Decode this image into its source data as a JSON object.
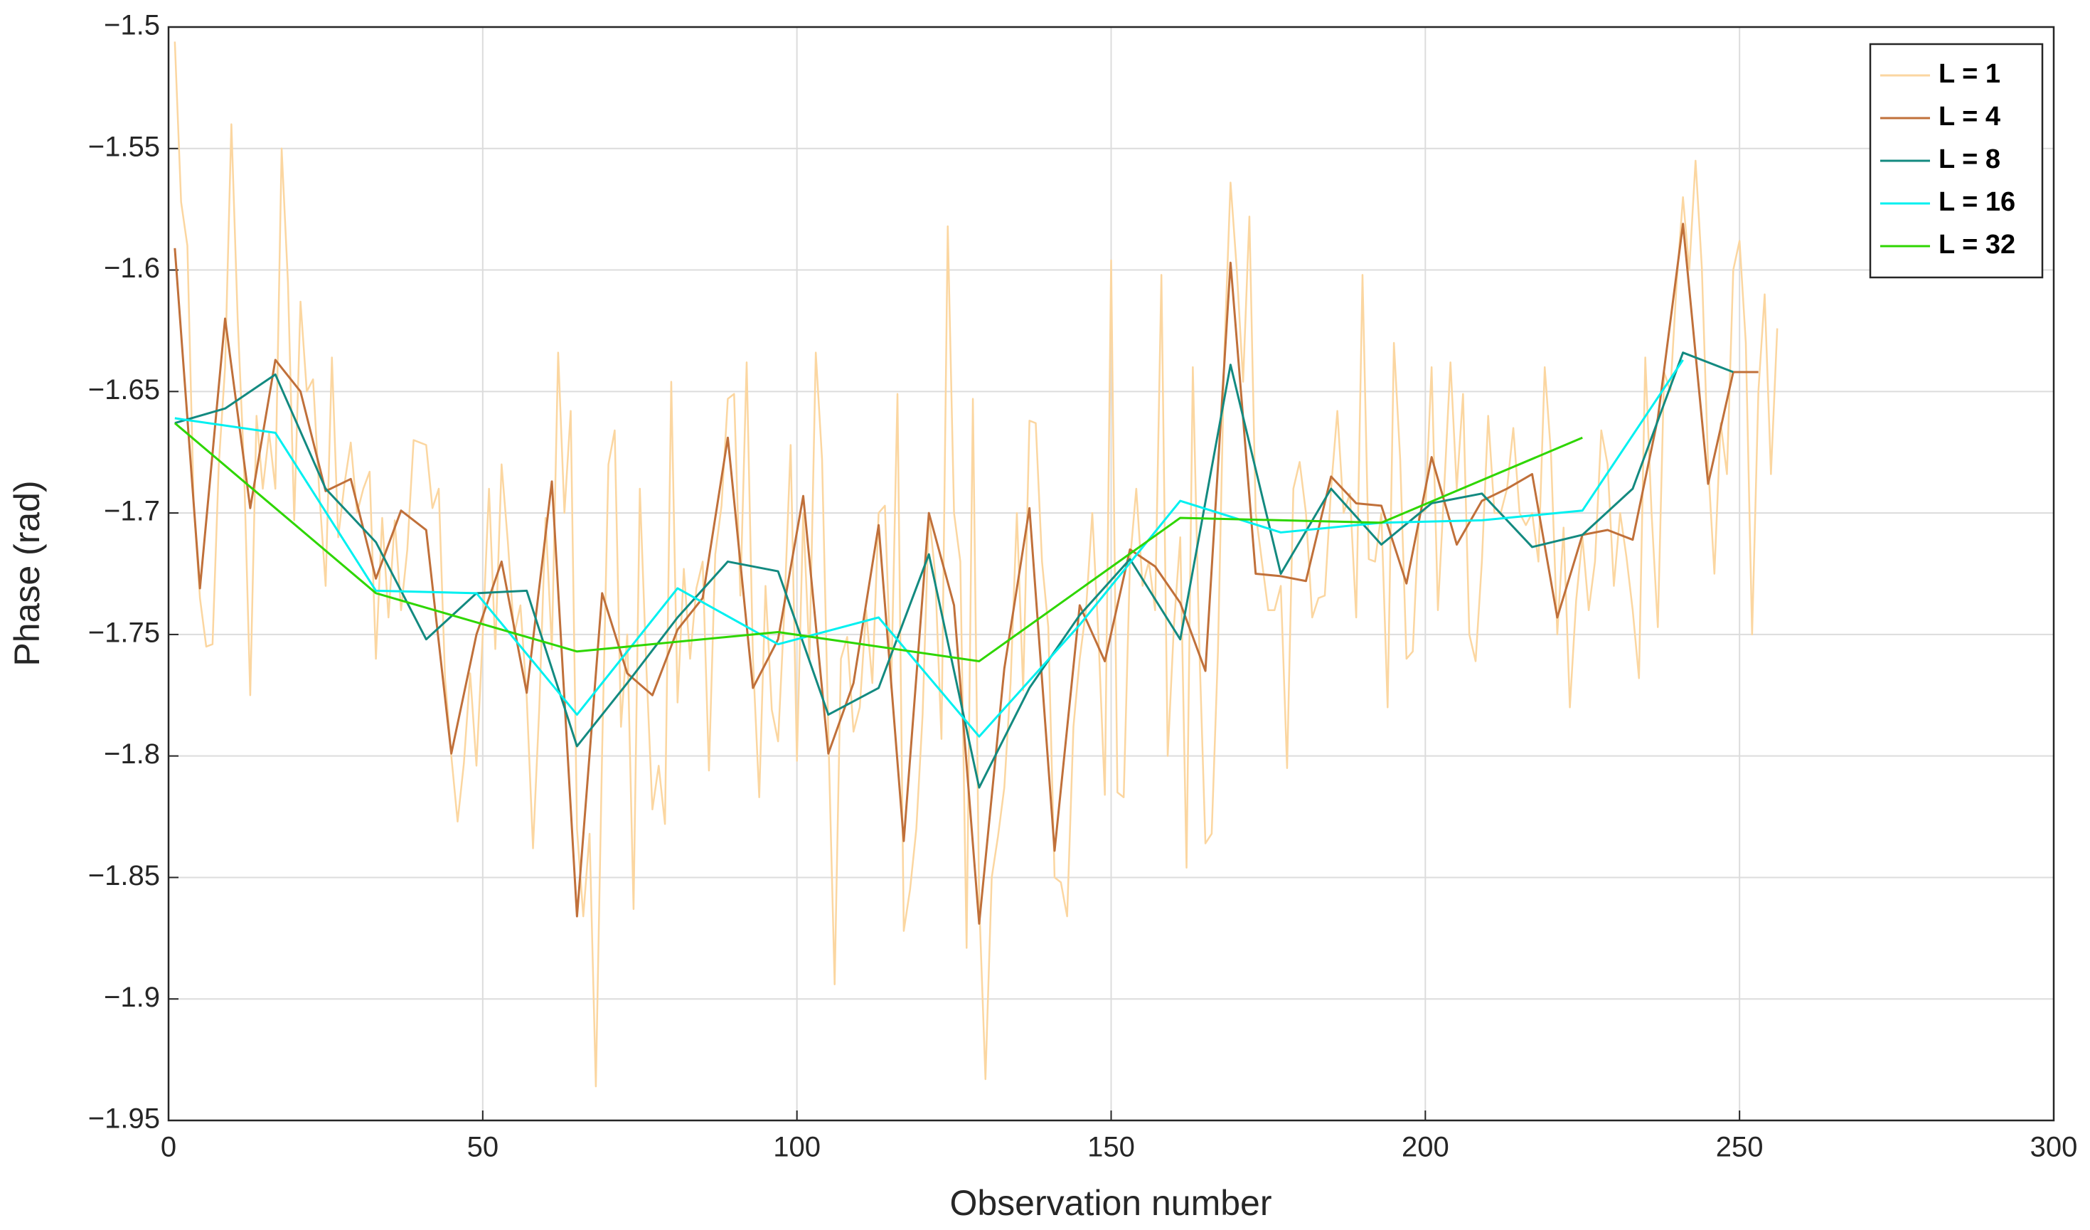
{
  "chart_data": {
    "type": "line",
    "xlabel": "Observation number",
    "ylabel": "Phase (rad)",
    "xlim": [
      0,
      300
    ],
    "xticks": [
      0,
      50,
      100,
      150,
      200,
      250,
      300
    ],
    "ylim": [
      -1.95,
      -1.5
    ],
    "yticks": [
      {
        "value": -1.95,
        "label": "−1.95"
      },
      {
        "value": -1.9,
        "label": "−1.9"
      },
      {
        "value": -1.85,
        "label": "−1.85"
      },
      {
        "value": -1.8,
        "label": "−1.8"
      },
      {
        "value": -1.75,
        "label": "−1.75"
      },
      {
        "value": -1.7,
        "label": "−1.7"
      },
      {
        "value": -1.65,
        "label": "−1.65"
      },
      {
        "value": -1.6,
        "label": "−1.6"
      },
      {
        "value": -1.55,
        "label": "−1.55"
      },
      {
        "value": -1.5,
        "label": "−1.5"
      }
    ],
    "grid": true,
    "legend": "northeast",
    "series": [
      {
        "name": "L = 1",
        "color": "#fbd6a0",
        "x": [
          1,
          2,
          3,
          4,
          5,
          6,
          7,
          8,
          9,
          10,
          11,
          12,
          13,
          14,
          15,
          16,
          17,
          18,
          19,
          20,
          21,
          22,
          23,
          24,
          25,
          26,
          27,
          28,
          29,
          30,
          31,
          32,
          33,
          34,
          35,
          36,
          37,
          38,
          39,
          40,
          41,
          42,
          43,
          44,
          45,
          46,
          47,
          48,
          49,
          50,
          51,
          52,
          53,
          54,
          55,
          56,
          57,
          58,
          59,
          60,
          61,
          62,
          63,
          64,
          65,
          66,
          67,
          68,
          69,
          70,
          71,
          72,
          73,
          74,
          75,
          76,
          77,
          78,
          79,
          80,
          81,
          82,
          83,
          84,
          85,
          86,
          87,
          88,
          89,
          90,
          91,
          92,
          93,
          94,
          95,
          96,
          97,
          98,
          99,
          100,
          101,
          102,
          103,
          104,
          105,
          106,
          107,
          108,
          109,
          110,
          111,
          112,
          113,
          114,
          115,
          116,
          117,
          118,
          119,
          120,
          121,
          122,
          123,
          124,
          125,
          126,
          127,
          128,
          129,
          130,
          131,
          132,
          133,
          134,
          135,
          136,
          137,
          138,
          139,
          140,
          141,
          142,
          143,
          144,
          145,
          146,
          147,
          148,
          149,
          150,
          151,
          152,
          153,
          154,
          155,
          156,
          157,
          158,
          159,
          160,
          161,
          162,
          163,
          164,
          165,
          166,
          167,
          168,
          169,
          170,
          171,
          172,
          173,
          174,
          175,
          176,
          177,
          178,
          179,
          180,
          181,
          182,
          183,
          184,
          185,
          186,
          187,
          188,
          189,
          190,
          191,
          192,
          193,
          194,
          195,
          196,
          197,
          198,
          199,
          200,
          201,
          202,
          203,
          204,
          205,
          206,
          207,
          208,
          209,
          210,
          211,
          212,
          213,
          214,
          215,
          216,
          217,
          218,
          219,
          220,
          221,
          222,
          223,
          224,
          225,
          226,
          227,
          228,
          229,
          230,
          231,
          232,
          233,
          234,
          235,
          236,
          237,
          238,
          239,
          240,
          241,
          242,
          243,
          244,
          245,
          246,
          247,
          248,
          249,
          250,
          251,
          252,
          253,
          254,
          255,
          256
        ],
        "values": [
          -1.506,
          -1.572,
          -1.59,
          -1.696,
          -1.735,
          -1.755,
          -1.754,
          -1.68,
          -1.64,
          -1.54,
          -1.62,
          -1.68,
          -1.775,
          -1.66,
          -1.69,
          -1.667,
          -1.69,
          -1.55,
          -1.605,
          -1.703,
          -1.613,
          -1.65,
          -1.645,
          -1.692,
          -1.73,
          -1.636,
          -1.71,
          -1.688,
          -1.671,
          -1.7,
          -1.69,
          -1.683,
          -1.76,
          -1.702,
          -1.743,
          -1.703,
          -1.74,
          -1.715,
          -1.67,
          -1.671,
          -1.672,
          -1.698,
          -1.69,
          -1.768,
          -1.8,
          -1.827,
          -1.803,
          -1.766,
          -1.804,
          -1.75,
          -1.69,
          -1.756,
          -1.68,
          -1.712,
          -1.75,
          -1.738,
          -1.776,
          -1.838,
          -1.78,
          -1.702,
          -1.756,
          -1.634,
          -1.7,
          -1.658,
          -1.83,
          -1.866,
          -1.832,
          -1.936,
          -1.798,
          -1.68,
          -1.666,
          -1.788,
          -1.75,
          -1.863,
          -1.69,
          -1.761,
          -1.822,
          -1.804,
          -1.828,
          -1.646,
          -1.778,
          -1.723,
          -1.76,
          -1.731,
          -1.72,
          -1.806,
          -1.717,
          -1.697,
          -1.653,
          -1.651,
          -1.734,
          -1.638,
          -1.76,
          -1.817,
          -1.73,
          -1.781,
          -1.794,
          -1.74,
          -1.672,
          -1.802,
          -1.7,
          -1.76,
          -1.634,
          -1.678,
          -1.791,
          -1.894,
          -1.76,
          -1.751,
          -1.79,
          -1.78,
          -1.74,
          -1.77,
          -1.7,
          -1.697,
          -1.772,
          -1.651,
          -1.872,
          -1.855,
          -1.83,
          -1.783,
          -1.7,
          -1.725,
          -1.793,
          -1.582,
          -1.7,
          -1.72,
          -1.879,
          -1.653,
          -1.86,
          -1.933,
          -1.85,
          -1.833,
          -1.813,
          -1.77,
          -1.7,
          -1.773,
          -1.662,
          -1.663,
          -1.72,
          -1.747,
          -1.85,
          -1.852,
          -1.866,
          -1.788,
          -1.76,
          -1.74,
          -1.7,
          -1.752,
          -1.816,
          -1.596,
          -1.815,
          -1.817,
          -1.72,
          -1.69,
          -1.73,
          -1.72,
          -1.74,
          -1.602,
          -1.8,
          -1.746,
          -1.71,
          -1.846,
          -1.64,
          -1.752,
          -1.836,
          -1.832,
          -1.757,
          -1.635,
          -1.564,
          -1.6,
          -1.646,
          -1.578,
          -1.7,
          -1.72,
          -1.74,
          -1.74,
          -1.73,
          -1.805,
          -1.69,
          -1.679,
          -1.7,
          -1.743,
          -1.735,
          -1.734,
          -1.69,
          -1.658,
          -1.7,
          -1.692,
          -1.743,
          -1.602,
          -1.719,
          -1.72,
          -1.7,
          -1.78,
          -1.63,
          -1.678,
          -1.76,
          -1.757,
          -1.7,
          -1.699,
          -1.64,
          -1.74,
          -1.69,
          -1.638,
          -1.69,
          -1.651,
          -1.75,
          -1.761,
          -1.72,
          -1.66,
          -1.7,
          -1.7,
          -1.69,
          -1.665,
          -1.7,
          -1.705,
          -1.7,
          -1.72,
          -1.64,
          -1.676,
          -1.75,
          -1.706,
          -1.78,
          -1.736,
          -1.71,
          -1.74,
          -1.72,
          -1.666,
          -1.68,
          -1.73,
          -1.7,
          -1.718,
          -1.74,
          -1.768,
          -1.636,
          -1.7,
          -1.747,
          -1.642,
          -1.65,
          -1.605,
          -1.57,
          -1.6,
          -1.555,
          -1.599,
          -1.68,
          -1.725,
          -1.663,
          -1.684,
          -1.6,
          -1.588,
          -1.63,
          -1.75,
          -1.65,
          -1.61,
          -1.684,
          -1.624
        ]
      },
      {
        "name": "L = 4",
        "color": "#c0703a",
        "x": [
          1,
          5,
          9,
          13,
          17,
          21,
          25,
          29,
          33,
          37,
          41,
          45,
          49,
          53,
          57,
          61,
          65,
          69,
          73,
          77,
          81,
          85,
          89,
          93,
          97,
          101,
          105,
          109,
          113,
          117,
          121,
          125,
          129,
          133,
          137,
          141,
          145,
          149,
          153,
          157,
          161,
          165,
          169,
          173,
          177,
          181,
          185,
          189,
          193,
          197,
          201,
          205,
          209,
          213,
          217,
          221,
          225,
          229,
          233,
          237,
          241,
          245,
          249,
          253
        ],
        "values": [
          -1.591,
          -1.731,
          -1.62,
          -1.698,
          -1.637,
          -1.65,
          -1.691,
          -1.686,
          -1.727,
          -1.699,
          -1.707,
          -1.799,
          -1.75,
          -1.72,
          -1.774,
          -1.687,
          -1.866,
          -1.733,
          -1.766,
          -1.775,
          -1.748,
          -1.735,
          -1.669,
          -1.772,
          -1.752,
          -1.693,
          -1.799,
          -1.77,
          -1.705,
          -1.835,
          -1.7,
          -1.738,
          -1.869,
          -1.764,
          -1.698,
          -1.839,
          -1.738,
          -1.761,
          -1.715,
          -1.722,
          -1.737,
          -1.765,
          -1.597,
          -1.725,
          -1.726,
          -1.728,
          -1.685,
          -1.696,
          -1.697,
          -1.729,
          -1.677,
          -1.713,
          -1.695,
          -1.69,
          -1.684,
          -1.743,
          -1.709,
          -1.707,
          -1.711,
          -1.661,
          -1.581,
          -1.688,
          -1.642,
          -1.642
        ]
      },
      {
        "name": "L = 8",
        "color": "#138a80",
        "x": [
          1,
          9,
          17,
          25,
          33,
          41,
          49,
          57,
          65,
          73,
          81,
          89,
          97,
          105,
          113,
          121,
          129,
          137,
          145,
          153,
          161,
          169,
          177,
          185,
          193,
          201,
          209,
          217,
          225,
          233,
          241,
          249
        ],
        "values": [
          -1.663,
          -1.657,
          -1.643,
          -1.69,
          -1.712,
          -1.752,
          -1.733,
          -1.732,
          -1.796,
          -1.77,
          -1.743,
          -1.72,
          -1.724,
          -1.783,
          -1.772,
          -1.717,
          -1.813,
          -1.772,
          -1.742,
          -1.719,
          -1.752,
          -1.639,
          -1.725,
          -1.69,
          -1.713,
          -1.696,
          -1.692,
          -1.714,
          -1.709,
          -1.69,
          -1.634,
          -1.642
        ]
      },
      {
        "name": "L = 16",
        "color": "#00f0f0",
        "x": [
          1,
          17,
          33,
          49,
          65,
          81,
          97,
          113,
          129,
          145,
          161,
          177,
          193,
          209,
          225,
          241
        ],
        "values": [
          -1.661,
          -1.667,
          -1.732,
          -1.733,
          -1.783,
          -1.731,
          -1.754,
          -1.743,
          -1.792,
          -1.746,
          -1.695,
          -1.708,
          -1.704,
          -1.703,
          -1.699,
          -1.637
        ]
      },
      {
        "name": "L = 32",
        "color": "#2ed600",
        "x": [
          1,
          33,
          65,
          97,
          129,
          161,
          193,
          225
        ],
        "values": [
          -1.663,
          -1.733,
          -1.757,
          -1.749,
          -1.761,
          -1.702,
          -1.704,
          -1.669
        ]
      }
    ]
  }
}
